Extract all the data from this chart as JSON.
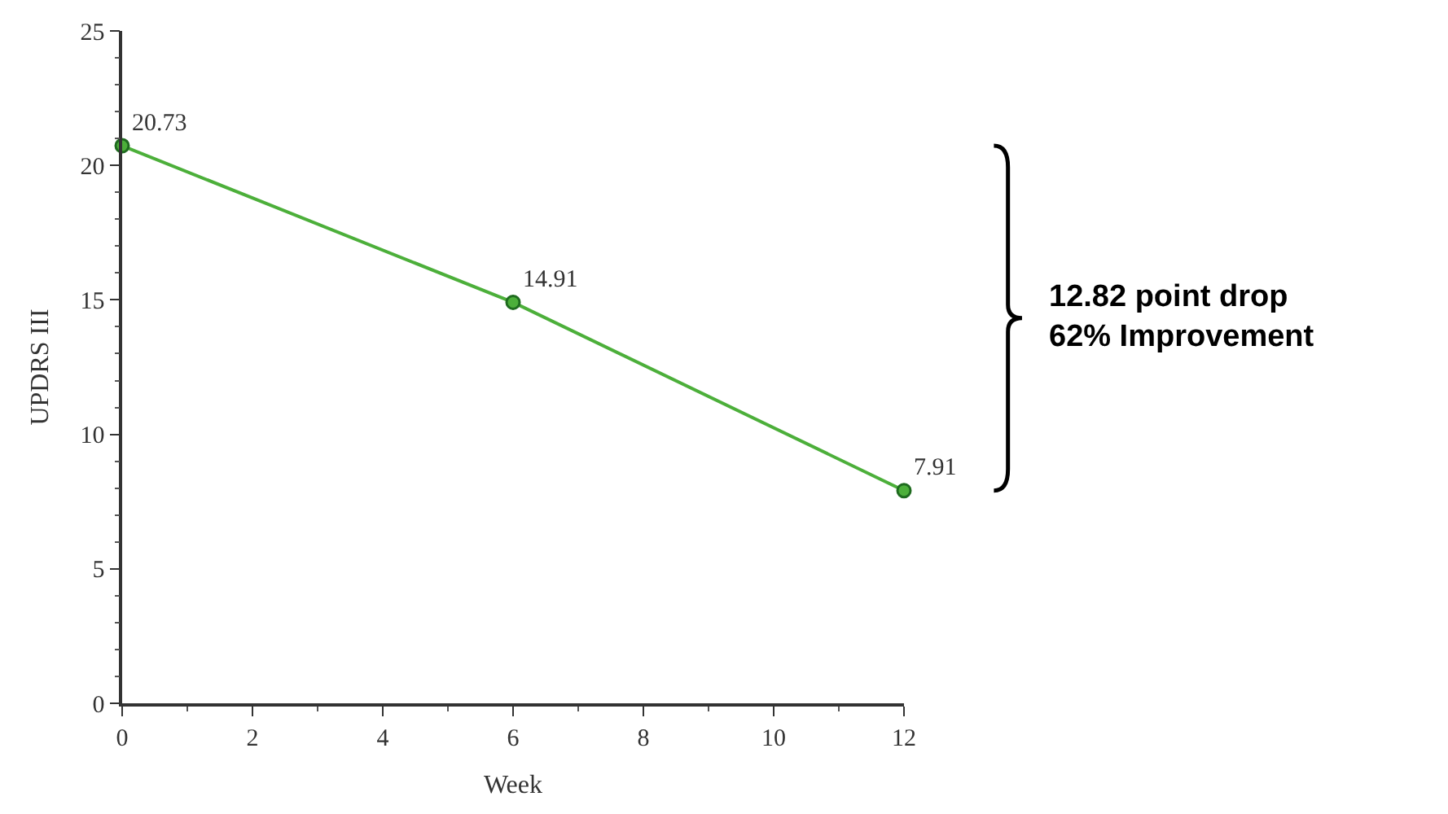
{
  "chart_data": {
    "type": "line",
    "xlabel": "Week",
    "ylabel": "UPDRS III",
    "x": [
      0,
      6,
      12
    ],
    "series": [
      {
        "color": "#4caf3a",
        "values": [
          20.73,
          14.91,
          7.91
        ]
      }
    ],
    "xlim": [
      0,
      12
    ],
    "xticks": [
      0,
      2,
      4,
      6,
      8,
      10,
      12
    ],
    "ylim": [
      0,
      25
    ],
    "yticks": [
      0,
      5,
      10,
      15,
      20,
      25
    ],
    "marker": "circle",
    "line_style": "solid",
    "data_labels": true,
    "annotations": [
      "12.82 point drop\n62% Improvement"
    ]
  }
}
